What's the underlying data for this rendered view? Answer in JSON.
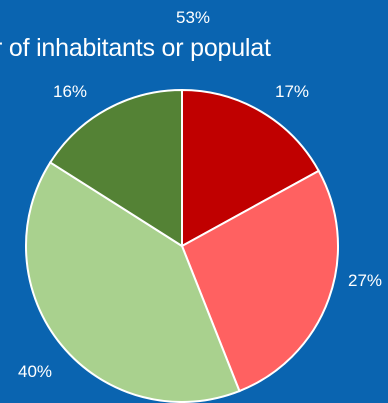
{
  "header": {
    "top_label": "53%",
    "title_fragment": "r of inhabitants  or populat"
  },
  "chart_data": {
    "type": "pie",
    "title": "",
    "start_angle_deg": 0,
    "direction": "clockwise",
    "slices": [
      {
        "label": "17%",
        "value": 17,
        "color": "#c00000"
      },
      {
        "label": "27%",
        "value": 27,
        "color": "#ff6161"
      },
      {
        "label": "40%",
        "value": 40,
        "color": "#a9d18e"
      },
      {
        "label": "16%",
        "value": 16,
        "color": "#548235"
      }
    ],
    "border_color": "#ffffff",
    "legend": "none",
    "grid": false
  }
}
